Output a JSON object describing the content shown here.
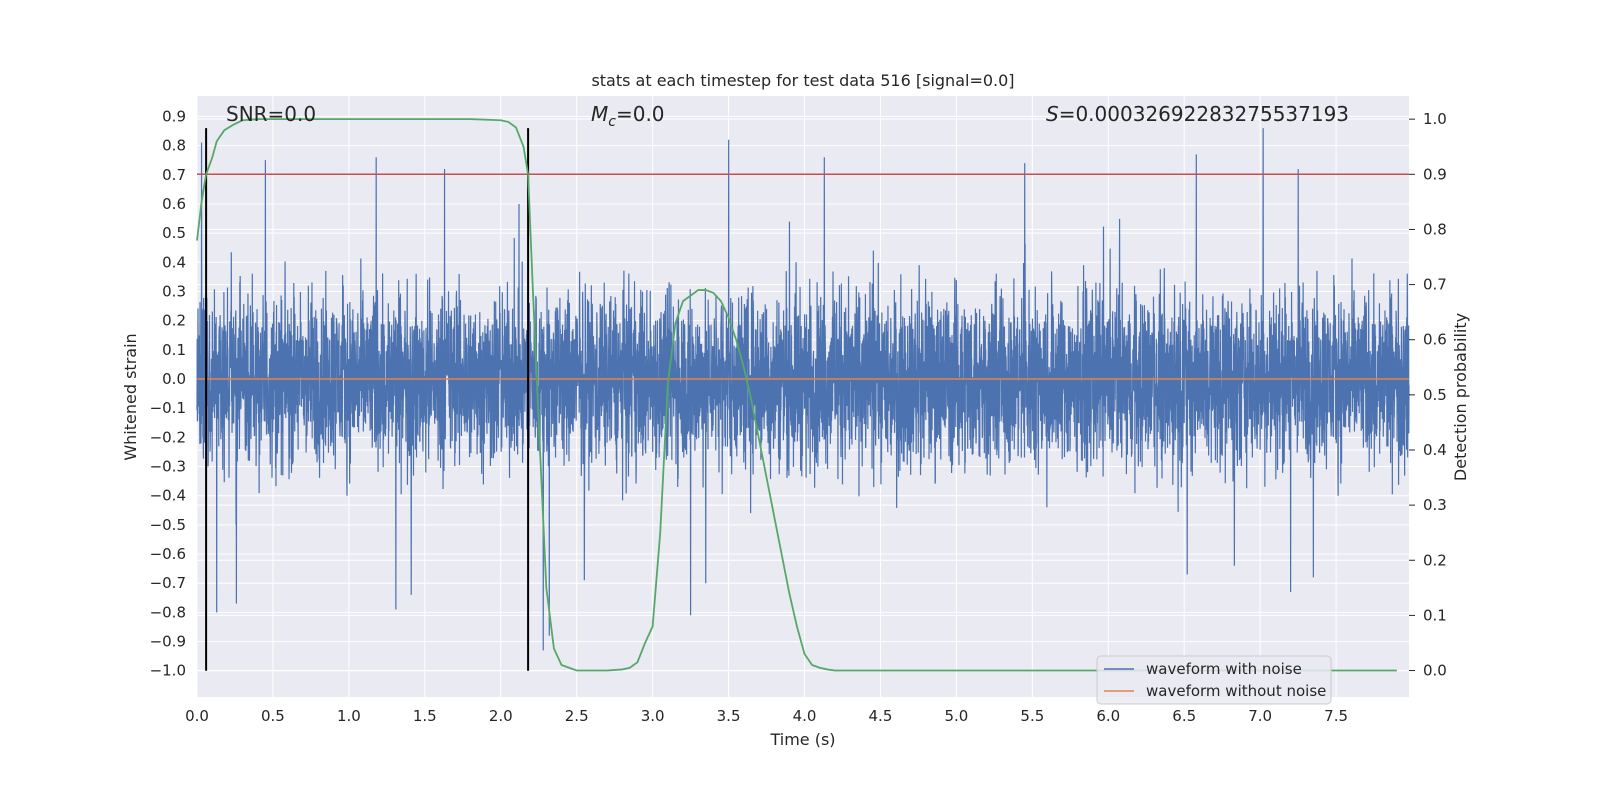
{
  "chart_data": {
    "type": "line",
    "title": "stats at each timestep for test data 516 [signal=0.0]",
    "xlabel": "Time (s)",
    "ylabel": "Whitened strain",
    "y2label": "Detection probability",
    "xlim": [
      0.0,
      7.98
    ],
    "ylim": [
      -1.09,
      0.97
    ],
    "y2lim": [
      -0.048,
      1.042
    ],
    "xticks": [
      "0.0",
      "0.5",
      "1.0",
      "1.5",
      "2.0",
      "2.5",
      "3.0",
      "3.5",
      "4.0",
      "4.5",
      "5.0",
      "5.5",
      "6.0",
      "6.5",
      "7.0",
      "7.5"
    ],
    "yticks": [
      "0.9",
      "0.8",
      "0.7",
      "0.6",
      "0.5",
      "0.4",
      "0.3",
      "0.2",
      "0.1",
      "0.0",
      "-0.1",
      "-0.2",
      "-0.3",
      "-0.4",
      "-0.5",
      "-0.6",
      "-0.7",
      "-0.8",
      "-0.9",
      "-1.0"
    ],
    "y2ticks": [
      "1.0",
      "0.9",
      "0.8",
      "0.7",
      "0.6",
      "0.5",
      "0.4",
      "0.3",
      "0.2",
      "0.1",
      "0.0"
    ],
    "annotations": {
      "snr": "SNR=0.0",
      "mc_sym": "M",
      "mc_sub": "c",
      "mc_val": "=0.0",
      "s_sym": "S",
      "s_val": "=0.00032692283275537193"
    },
    "legend": {
      "location": "lower right",
      "entries": [
        "waveform with noise",
        "waveform without noise"
      ]
    },
    "series": [
      {
        "name": "waveform with noise",
        "color": "#4c72b0",
        "description": "noise-like whitened strain, roughly symmetric about 0",
        "envelope": 0.35,
        "peaks": [
          [
            0.03,
            0.81
          ],
          [
            0.45,
            0.75
          ],
          [
            1.18,
            0.76
          ],
          [
            1.63,
            0.72
          ],
          [
            2.18,
            0.7
          ],
          [
            3.5,
            0.82
          ],
          [
            4.13,
            0.76
          ],
          [
            5.45,
            0.74
          ],
          [
            6.58,
            0.77
          ],
          [
            7.02,
            0.86
          ],
          [
            7.25,
            0.72
          ]
        ],
        "troughs": [
          [
            0.06,
            -0.66
          ],
          [
            0.13,
            -0.8
          ],
          [
            0.26,
            -0.77
          ],
          [
            1.31,
            -0.79
          ],
          [
            1.41,
            -0.74
          ],
          [
            2.28,
            -0.93
          ],
          [
            2.32,
            -0.88
          ],
          [
            2.55,
            -0.69
          ],
          [
            3.25,
            -0.81
          ],
          [
            3.35,
            -0.7
          ],
          [
            6.52,
            -0.67
          ],
          [
            6.83,
            -0.64
          ],
          [
            7.2,
            -0.73
          ],
          [
            7.35,
            -0.68
          ]
        ]
      },
      {
        "name": "waveform without noise",
        "color": "#dd8452",
        "x": [
          0.0,
          7.98
        ],
        "y": [
          0.0,
          0.0
        ]
      },
      {
        "name": "detection probability",
        "axis": "right",
        "color": "#55a868",
        "x": [
          0.0,
          0.03,
          0.06,
          0.1,
          0.13,
          0.18,
          0.24,
          0.3,
          0.4,
          0.6,
          1.0,
          1.5,
          1.8,
          2.0,
          2.05,
          2.1,
          2.15,
          2.18,
          2.21,
          2.25,
          2.3,
          2.35,
          2.4,
          2.5,
          2.6,
          2.7,
          2.8,
          2.85,
          2.9,
          2.95,
          3.0,
          3.05,
          3.1,
          3.15,
          3.2,
          3.25,
          3.3,
          3.35,
          3.4,
          3.45,
          3.5,
          3.55,
          3.6,
          3.65,
          3.7,
          3.75,
          3.8,
          3.85,
          3.9,
          3.95,
          4.0,
          4.05,
          4.1,
          4.15,
          4.2,
          4.4,
          5.0,
          6.0,
          7.0,
          7.9
        ],
        "y": [
          0.78,
          0.85,
          0.9,
          0.93,
          0.96,
          0.98,
          0.99,
          0.998,
          1.0,
          1.0,
          1.0,
          1.0,
          1.0,
          0.998,
          0.995,
          0.985,
          0.95,
          0.9,
          0.7,
          0.45,
          0.15,
          0.04,
          0.01,
          0.0,
          0.0,
          0.0,
          0.002,
          0.005,
          0.015,
          0.05,
          0.08,
          0.25,
          0.52,
          0.63,
          0.67,
          0.68,
          0.69,
          0.69,
          0.685,
          0.67,
          0.64,
          0.6,
          0.55,
          0.49,
          0.42,
          0.35,
          0.28,
          0.21,
          0.14,
          0.08,
          0.03,
          0.01,
          0.005,
          0.002,
          0.0,
          0.0,
          0.0,
          0.0,
          0.0,
          0.0
        ]
      },
      {
        "name": "threshold",
        "axis": "right",
        "color": "#c44e52",
        "x": [
          0.0,
          7.98
        ],
        "y": [
          0.9,
          0.9
        ]
      }
    ],
    "vertical_lines": [
      0.06,
      2.18
    ],
    "vertical_line_color": "#000000",
    "colors": {
      "plot_bg": "#eaeaf2",
      "grid": "#ffffff",
      "text": "#262626"
    }
  }
}
